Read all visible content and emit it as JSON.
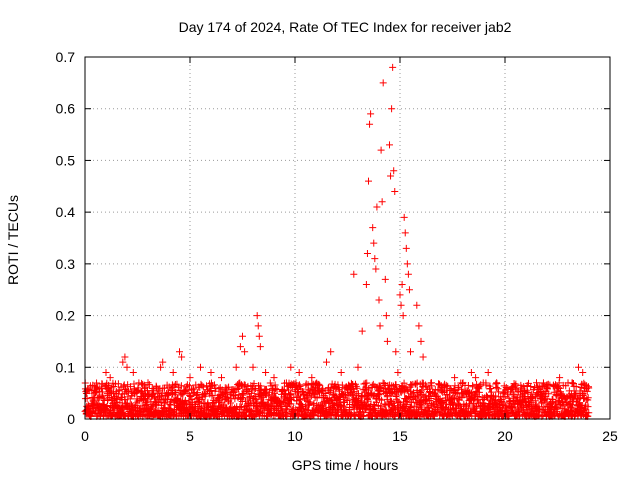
{
  "chart_data": {
    "type": "scatter",
    "title": "Day 174 of 2024, Rate Of TEC Index for receiver jab2",
    "xlabel": "GPS time / hours",
    "ylabel": "ROTI / TECUs",
    "xlim": [
      0,
      25
    ],
    "ylim": [
      0,
      0.7
    ],
    "x_ticks": [
      0,
      5,
      10,
      15,
      20,
      25
    ],
    "y_ticks": [
      0,
      0.1,
      0.2,
      0.3,
      0.4,
      0.5,
      0.6,
      0.7
    ],
    "x_tick_labels": [
      "0",
      "5",
      "10",
      "15",
      "20",
      "25"
    ],
    "y_tick_labels": [
      "0",
      "0.1",
      "0.2",
      "0.3",
      "0.4",
      "0.5",
      "0.6",
      "0.7"
    ],
    "grid": true,
    "marker": "+",
    "series_color": "#ff0000",
    "series": [
      {
        "name": "ROTI",
        "baseline_band": {
          "x_start": 0,
          "x_end": 24,
          "typical_min": 0.005,
          "typical_max": 0.07
        },
        "points": [
          {
            "x": 0.1,
            "y": 0.04
          },
          {
            "x": 0.5,
            "y": 0.06
          },
          {
            "x": 1.0,
            "y": 0.09
          },
          {
            "x": 1.2,
            "y": 0.08
          },
          {
            "x": 1.8,
            "y": 0.11
          },
          {
            "x": 1.9,
            "y": 0.12
          },
          {
            "x": 2.0,
            "y": 0.1
          },
          {
            "x": 2.3,
            "y": 0.09
          },
          {
            "x": 3.0,
            "y": 0.07
          },
          {
            "x": 3.6,
            "y": 0.1
          },
          {
            "x": 3.7,
            "y": 0.11
          },
          {
            "x": 4.2,
            "y": 0.09
          },
          {
            "x": 4.5,
            "y": 0.13
          },
          {
            "x": 4.6,
            "y": 0.12
          },
          {
            "x": 5.0,
            "y": 0.08
          },
          {
            "x": 5.5,
            "y": 0.1
          },
          {
            "x": 6.0,
            "y": 0.09
          },
          {
            "x": 6.5,
            "y": 0.08
          },
          {
            "x": 7.2,
            "y": 0.1
          },
          {
            "x": 7.4,
            "y": 0.14
          },
          {
            "x": 7.5,
            "y": 0.16
          },
          {
            "x": 7.6,
            "y": 0.13
          },
          {
            "x": 8.0,
            "y": 0.1
          },
          {
            "x": 8.2,
            "y": 0.2
          },
          {
            "x": 8.25,
            "y": 0.18
          },
          {
            "x": 8.3,
            "y": 0.16
          },
          {
            "x": 8.35,
            "y": 0.14
          },
          {
            "x": 8.6,
            "y": 0.09
          },
          {
            "x": 9.0,
            "y": 0.08
          },
          {
            "x": 9.8,
            "y": 0.1
          },
          {
            "x": 10.2,
            "y": 0.09
          },
          {
            "x": 10.8,
            "y": 0.08
          },
          {
            "x": 11.5,
            "y": 0.11
          },
          {
            "x": 11.7,
            "y": 0.13
          },
          {
            "x": 12.2,
            "y": 0.09
          },
          {
            "x": 12.8,
            "y": 0.28
          },
          {
            "x": 13.0,
            "y": 0.1
          },
          {
            "x": 13.2,
            "y": 0.17
          },
          {
            "x": 13.4,
            "y": 0.26
          },
          {
            "x": 13.45,
            "y": 0.32
          },
          {
            "x": 13.5,
            "y": 0.46
          },
          {
            "x": 13.55,
            "y": 0.57
          },
          {
            "x": 13.6,
            "y": 0.59
          },
          {
            "x": 13.7,
            "y": 0.37
          },
          {
            "x": 13.75,
            "y": 0.34
          },
          {
            "x": 13.8,
            "y": 0.31
          },
          {
            "x": 13.85,
            "y": 0.29
          },
          {
            "x": 13.9,
            "y": 0.41
          },
          {
            "x": 14.0,
            "y": 0.23
          },
          {
            "x": 14.05,
            "y": 0.18
          },
          {
            "x": 14.1,
            "y": 0.52
          },
          {
            "x": 14.15,
            "y": 0.42
          },
          {
            "x": 14.2,
            "y": 0.65
          },
          {
            "x": 14.3,
            "y": 0.27
          },
          {
            "x": 14.35,
            "y": 0.2
          },
          {
            "x": 14.4,
            "y": 0.15
          },
          {
            "x": 14.5,
            "y": 0.53
          },
          {
            "x": 14.55,
            "y": 0.47
          },
          {
            "x": 14.6,
            "y": 0.6
          },
          {
            "x": 14.65,
            "y": 0.68
          },
          {
            "x": 14.7,
            "y": 0.48
          },
          {
            "x": 14.75,
            "y": 0.44
          },
          {
            "x": 14.8,
            "y": 0.13
          },
          {
            "x": 14.9,
            "y": 0.09
          },
          {
            "x": 15.0,
            "y": 0.24
          },
          {
            "x": 15.05,
            "y": 0.22
          },
          {
            "x": 15.1,
            "y": 0.26
          },
          {
            "x": 15.15,
            "y": 0.2
          },
          {
            "x": 15.2,
            "y": 0.39
          },
          {
            "x": 15.25,
            "y": 0.36
          },
          {
            "x": 15.3,
            "y": 0.33
          },
          {
            "x": 15.35,
            "y": 0.3
          },
          {
            "x": 15.4,
            "y": 0.28
          },
          {
            "x": 15.45,
            "y": 0.25
          },
          {
            "x": 15.5,
            "y": 0.13
          },
          {
            "x": 15.8,
            "y": 0.22
          },
          {
            "x": 15.9,
            "y": 0.18
          },
          {
            "x": 16.0,
            "y": 0.15
          },
          {
            "x": 16.1,
            "y": 0.12
          },
          {
            "x": 16.5,
            "y": 0.07
          },
          {
            "x": 17.0,
            "y": 0.06
          },
          {
            "x": 17.6,
            "y": 0.08
          },
          {
            "x": 18.0,
            "y": 0.07
          },
          {
            "x": 18.4,
            "y": 0.09
          },
          {
            "x": 18.6,
            "y": 0.08
          },
          {
            "x": 19.2,
            "y": 0.09
          },
          {
            "x": 19.6,
            "y": 0.07
          },
          {
            "x": 20.3,
            "y": 0.06
          },
          {
            "x": 20.8,
            "y": 0.06
          },
          {
            "x": 21.5,
            "y": 0.07
          },
          {
            "x": 22.0,
            "y": 0.06
          },
          {
            "x": 22.6,
            "y": 0.08
          },
          {
            "x": 23.2,
            "y": 0.07
          },
          {
            "x": 23.5,
            "y": 0.1
          },
          {
            "x": 23.7,
            "y": 0.09
          },
          {
            "x": 23.9,
            "y": 0.06
          }
        ]
      }
    ]
  }
}
